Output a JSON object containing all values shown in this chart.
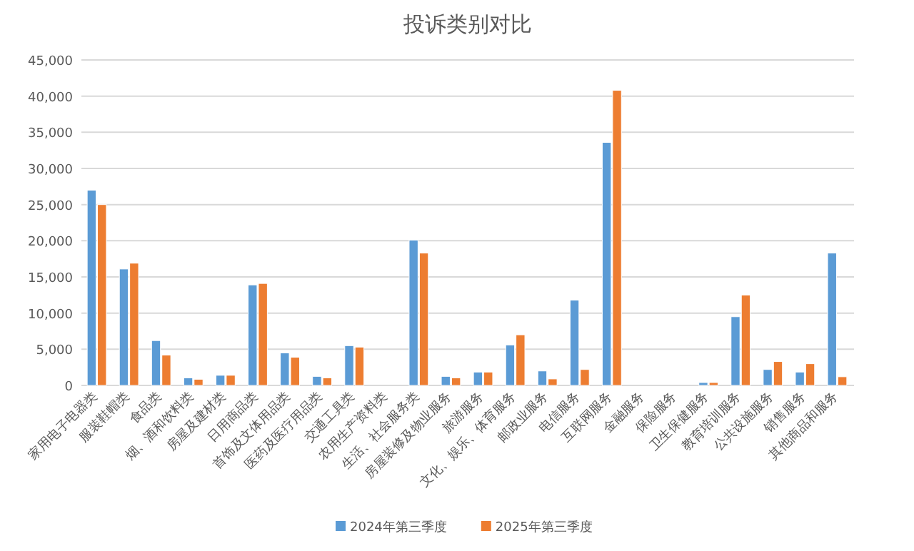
{
  "chart_data": {
    "type": "bar",
    "title": "投诉类别对比",
    "categories": [
      "家用电子电器类",
      "服装鞋帽类",
      "食品类",
      "烟、酒和饮料类",
      "房屋及建材类",
      "日用商品类",
      "首饰及文体用品类",
      "医药及医疗用品类",
      "交通工具类",
      "农用生产资料类",
      "生活、社会服务类",
      "房屋装修及物业服务",
      "旅游服务",
      "文化、娱乐、体育服务",
      "邮政业服务",
      "电信服务",
      "互联网服务",
      "金融服务",
      "保险服务",
      "卫生保健服务",
      "教育培训服务",
      "公共设施服务",
      "销售服务",
      "其他商品和服务"
    ],
    "series": [
      {
        "name": "2024年第三季度",
        "color": "#5b9bd5",
        "values": [
          27000,
          16100,
          6200,
          1050,
          1400,
          13900,
          4500,
          1250,
          5500,
          0,
          20100,
          1250,
          1850,
          5600,
          2000,
          11800,
          33600,
          0,
          0,
          400,
          9500,
          2200,
          1850,
          18300
        ]
      },
      {
        "name": "2025年第三季度",
        "color": "#ed7d31",
        "values": [
          25000,
          16900,
          4200,
          850,
          1400,
          14100,
          3900,
          1050,
          5300,
          0,
          18300,
          1050,
          1850,
          7000,
          900,
          2200,
          40800,
          0,
          0,
          400,
          12500,
          3300,
          3000,
          1200
        ]
      }
    ],
    "ylim": [
      0,
      45000
    ],
    "yticks": [
      {
        "value": 0,
        "label": "0"
      },
      {
        "value": 5000,
        "label": "5,000"
      },
      {
        "value": 10000,
        "label": "10,000"
      },
      {
        "value": 15000,
        "label": "15,000"
      },
      {
        "value": 20000,
        "label": "20,000"
      },
      {
        "value": 25000,
        "label": "25,000"
      },
      {
        "value": 30000,
        "label": "30,000"
      },
      {
        "value": 35000,
        "label": "35,000"
      },
      {
        "value": 40000,
        "label": "40,000"
      },
      {
        "value": 45000,
        "label": "45,000"
      }
    ],
    "grid": "y",
    "legend": "bottom"
  }
}
